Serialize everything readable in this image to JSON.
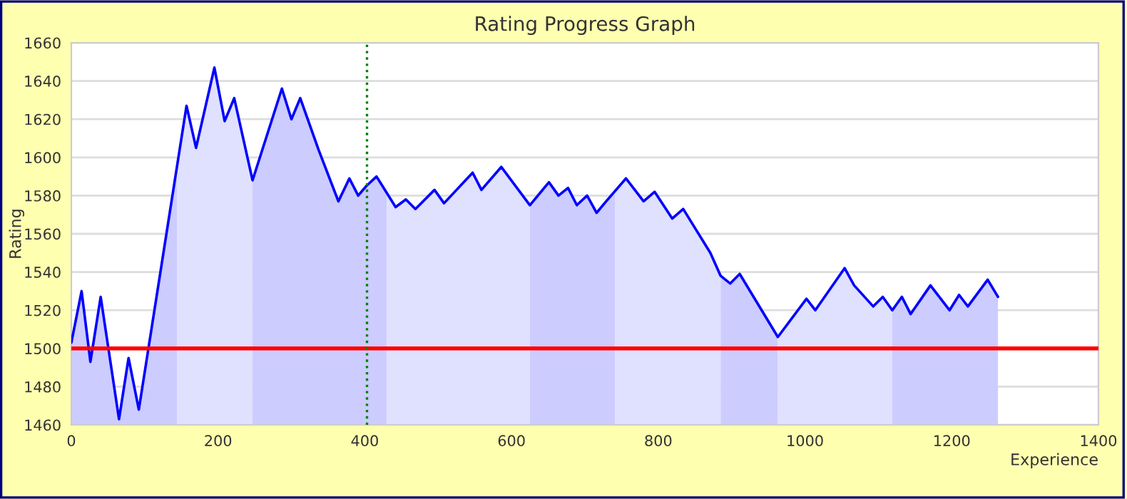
{
  "chart_data": {
    "type": "area",
    "title": "Rating Progress Graph",
    "xlabel": "Experience",
    "ylabel": "Rating",
    "xlim": [
      0,
      1400
    ],
    "xticks": [
      0,
      200,
      400,
      600,
      800,
      1000,
      1200,
      1400
    ],
    "ylim": [
      1460,
      1660
    ],
    "yticks": [
      1460,
      1480,
      1500,
      1520,
      1540,
      1560,
      1580,
      1600,
      1620,
      1640,
      1660
    ],
    "grid": "y",
    "ref_lines": [
      {
        "axis": "y",
        "value": 1500,
        "color": "#ff0000",
        "line_style": "solid"
      },
      {
        "axis": "x",
        "value": 403,
        "color": "#008000",
        "line_style": "dotted"
      }
    ],
    "series": [
      {
        "color": "#ccccff",
        "x": [
          0,
          14,
          26,
          40,
          65,
          78,
          92,
          144
        ],
        "values": [
          1503,
          1530,
          1493,
          1527,
          1463,
          1495,
          1468,
          1595
        ]
      },
      {
        "color": "#e0e0ff",
        "x": [
          144,
          157,
          170,
          195,
          209,
          222,
          247
        ],
        "values": [
          1595,
          1627,
          1605,
          1647,
          1619,
          1631,
          1588
        ]
      },
      {
        "color": "#ccccff",
        "x": [
          247,
          287,
          300,
          312,
          337,
          364,
          379,
          391,
          402,
          416,
          430
        ],
        "values": [
          1588,
          1636,
          1620,
          1631,
          1604,
          1577,
          1589,
          1580,
          1585,
          1590,
          1581
        ]
      },
      {
        "color": "#e0e0ff",
        "x": [
          430,
          442,
          456,
          469,
          495,
          508,
          547,
          559,
          586,
          625
        ],
        "values": [
          1581,
          1574,
          1578,
          1573,
          1583,
          1576,
          1592,
          1583,
          1595,
          1575
        ]
      },
      {
        "color": "#ccccff",
        "x": [
          625,
          651,
          664,
          677,
          689,
          703,
          716,
          729,
          741
        ],
        "values": [
          1575,
          1587,
          1580,
          1584,
          1575,
          1580,
          1571,
          1577,
          1582
        ]
      },
      {
        "color": "#e0e0ff",
        "x": [
          741,
          756,
          780,
          795,
          819,
          834,
          871,
          885
        ],
        "values": [
          1582,
          1589,
          1577,
          1582,
          1568,
          1573,
          1550,
          1538
        ]
      },
      {
        "color": "#ccccff",
        "x": [
          885,
          898,
          911,
          963
        ],
        "values": [
          1538,
          1534,
          1539,
          1506
        ]
      },
      {
        "color": "#e0e0ff",
        "x": [
          963,
          1002,
          1014,
          1054,
          1067,
          1093,
          1106,
          1119
        ],
        "values": [
          1506,
          1526,
          1520,
          1542,
          1533,
          1522,
          1527,
          1520
        ]
      },
      {
        "color": "#ccccff",
        "x": [
          1119,
          1132,
          1144,
          1171,
          1197,
          1210,
          1222,
          1249,
          1263
        ],
        "values": [
          1520,
          1527,
          1518,
          1533,
          1520,
          1528,
          1522,
          1536,
          1527
        ]
      },
      {
        "type": "line",
        "color": "#0000ff",
        "x": [
          0,
          14,
          26,
          40,
          65,
          78,
          92,
          157,
          170,
          195,
          209,
          222,
          247,
          287,
          300,
          312,
          337,
          364,
          379,
          391,
          402,
          416,
          442,
          456,
          469,
          495,
          508,
          547,
          559,
          586,
          625,
          651,
          664,
          677,
          689,
          703,
          716,
          729,
          756,
          780,
          795,
          819,
          834,
          871,
          885,
          898,
          911,
          963,
          1002,
          1014,
          1054,
          1067,
          1093,
          1106,
          1119,
          1132,
          1144,
          1171,
          1197,
          1210,
          1222,
          1249,
          1263
        ],
        "values": [
          1503,
          1530,
          1493,
          1527,
          1463,
          1495,
          1468,
          1627,
          1605,
          1647,
          1619,
          1631,
          1588,
          1636,
          1620,
          1631,
          1604,
          1577,
          1589,
          1580,
          1585,
          1590,
          1574,
          1578,
          1573,
          1583,
          1576,
          1592,
          1583,
          1595,
          1575,
          1587,
          1580,
          1584,
          1575,
          1580,
          1571,
          1577,
          1589,
          1577,
          1582,
          1568,
          1573,
          1550,
          1538,
          1534,
          1539,
          1506,
          1526,
          1520,
          1542,
          1533,
          1522,
          1527,
          1520,
          1527,
          1518,
          1533,
          1520,
          1528,
          1522,
          1536,
          1527
        ]
      }
    ]
  }
}
